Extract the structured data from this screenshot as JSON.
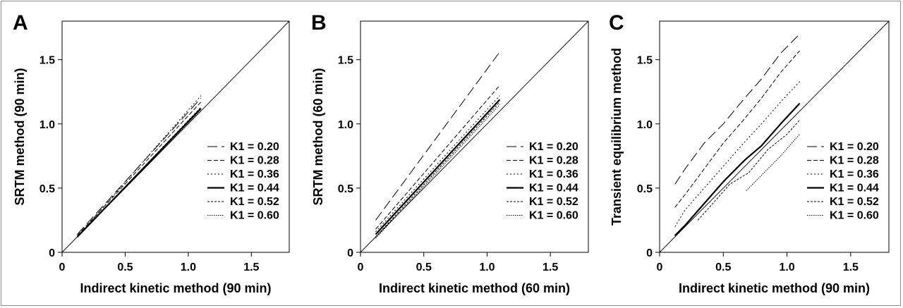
{
  "chart_data": [
    {
      "type": "line",
      "panel_label": "A",
      "xlabel": "Indirect kinetic method (90 min)",
      "ylabel": "SRTM method (90 min)",
      "xlim": [
        0,
        1.8
      ],
      "ylim": [
        0,
        1.8
      ],
      "xticks": [
        "0",
        "0.5",
        "1.0",
        "1.5"
      ],
      "yticks": [
        "0",
        "0.5",
        "1.0",
        "1.5"
      ],
      "identity_line": true,
      "legend_position": "bottom-right",
      "series": [
        {
          "name": "K1 = 0.20",
          "style": "long-dash",
          "x": [
            0.12,
            1.1
          ],
          "y": [
            0.14,
            1.2
          ]
        },
        {
          "name": "K1 = 0.28",
          "style": "dash",
          "x": [
            0.12,
            1.1
          ],
          "y": [
            0.13,
            1.17
          ]
        },
        {
          "name": "K1 = 0.36",
          "style": "dot",
          "x": [
            0.12,
            1.1
          ],
          "y": [
            0.12,
            1.22
          ]
        },
        {
          "name": "K1 = 0.44",
          "style": "solid",
          "x": [
            0.12,
            1.1
          ],
          "y": [
            0.12,
            1.12
          ]
        },
        {
          "name": "K1 = 0.52",
          "style": "short-dash",
          "x": [
            0.12,
            1.1
          ],
          "y": [
            0.12,
            1.13
          ]
        },
        {
          "name": "K1 = 0.60",
          "style": "fine-dot",
          "x": [
            0.12,
            1.1
          ],
          "y": [
            0.12,
            1.11
          ]
        }
      ]
    },
    {
      "type": "line",
      "panel_label": "B",
      "xlabel": "Indirect kinetic method (60 min)",
      "ylabel": "SRTM method (60 min)",
      "xlim": [
        0,
        1.8
      ],
      "ylim": [
        0,
        1.8
      ],
      "xticks": [
        "0",
        "0.5",
        "1.0",
        "1.5"
      ],
      "yticks": [
        "0",
        "0.5",
        "1.0",
        "1.5"
      ],
      "identity_line": true,
      "legend_position": "bottom-right",
      "series": [
        {
          "name": "K1 = 0.20",
          "style": "long-dash",
          "x": [
            0.12,
            1.1
          ],
          "y": [
            0.25,
            1.56
          ]
        },
        {
          "name": "K1 = 0.28",
          "style": "dash",
          "x": [
            0.12,
            1.1
          ],
          "y": [
            0.18,
            1.3
          ]
        },
        {
          "name": "K1 = 0.36",
          "style": "dot",
          "x": [
            0.12,
            1.1
          ],
          "y": [
            0.16,
            1.22
          ]
        },
        {
          "name": "K1 = 0.44",
          "style": "solid",
          "x": [
            0.12,
            1.1
          ],
          "y": [
            0.14,
            1.19
          ]
        },
        {
          "name": "K1 = 0.52",
          "style": "short-dash",
          "x": [
            0.12,
            1.1
          ],
          "y": [
            0.12,
            1.17
          ]
        },
        {
          "name": "K1 = 0.60",
          "style": "fine-dot",
          "x": [
            0.12,
            1.1
          ],
          "y": [
            0.11,
            1.15
          ]
        }
      ]
    },
    {
      "type": "line",
      "panel_label": "C",
      "xlabel": "Indirect kinetic method (90 min)",
      "ylabel": "Transient equilibrium method",
      "xlim": [
        0,
        1.8
      ],
      "ylim": [
        0,
        1.8
      ],
      "xticks": [
        "0",
        "0.5",
        "1.0",
        "1.5"
      ],
      "yticks": [
        "0",
        "0.5",
        "1.0",
        "1.5"
      ],
      "identity_line": true,
      "legend_position": "bottom-right",
      "series": [
        {
          "name": "K1 = 0.20",
          "style": "long-dash",
          "x": [
            0.12,
            0.2,
            0.35,
            0.5,
            0.65,
            0.8,
            0.95,
            1.1
          ],
          "y": [
            0.53,
            0.65,
            0.85,
            1.0,
            1.18,
            1.35,
            1.55,
            1.7
          ]
        },
        {
          "name": "K1 = 0.28",
          "style": "dash",
          "x": [
            0.12,
            0.2,
            0.35,
            0.5,
            0.65,
            0.8,
            0.95,
            1.1
          ],
          "y": [
            0.35,
            0.45,
            0.65,
            0.85,
            1.02,
            1.2,
            1.4,
            1.57
          ]
        },
        {
          "name": "K1 = 0.36",
          "style": "dot",
          "x": [
            0.12,
            0.2,
            0.35,
            0.5,
            0.65,
            0.8,
            0.95,
            1.1
          ],
          "y": [
            0.2,
            0.33,
            0.5,
            0.67,
            0.84,
            1.0,
            1.17,
            1.33
          ]
        },
        {
          "name": "K1 = 0.44",
          "style": "solid",
          "x": [
            0.12,
            0.2,
            0.35,
            0.5,
            0.67,
            0.8,
            0.95,
            1.1
          ],
          "y": [
            0.13,
            0.21,
            0.38,
            0.55,
            0.72,
            0.83,
            1.0,
            1.16
          ]
        },
        {
          "name": "K1 = 0.52",
          "style": "short-dash",
          "x": [
            0.3,
            0.4,
            0.55,
            0.7,
            0.85,
            1.0,
            1.1
          ],
          "y": [
            0.25,
            0.36,
            0.53,
            0.62,
            0.8,
            0.92,
            1.03
          ]
        },
        {
          "name": "K1 = 0.60",
          "style": "fine-dot",
          "x": [
            0.68,
            0.8,
            0.95,
            1.1
          ],
          "y": [
            0.48,
            0.6,
            0.75,
            0.92
          ]
        }
      ]
    }
  ]
}
